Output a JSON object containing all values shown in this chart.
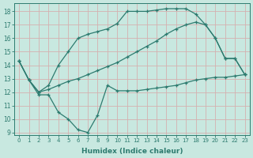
{
  "line1_x": [
    0,
    1,
    2,
    3,
    4,
    5,
    6,
    7,
    8,
    9,
    10,
    11,
    12,
    13,
    14,
    15,
    16,
    17,
    18,
    19,
    20,
    21,
    22,
    23
  ],
  "line1_y": [
    14.3,
    12.9,
    11.8,
    11.8,
    10.5,
    10.0,
    9.2,
    9.0,
    10.3,
    12.5,
    12.1,
    12.1,
    12.1,
    12.2,
    12.3,
    12.4,
    12.5,
    12.7,
    12.9,
    13.0,
    13.1,
    13.1,
    13.2,
    13.3
  ],
  "line2_x": [
    0,
    1,
    2,
    3,
    4,
    5,
    6,
    7,
    8,
    9,
    10,
    11,
    12,
    13,
    14,
    15,
    16,
    17,
    18,
    19,
    20,
    21,
    22,
    23
  ],
  "line2_y": [
    14.3,
    12.9,
    12.0,
    12.2,
    12.5,
    12.8,
    13.0,
    13.3,
    13.6,
    13.9,
    14.2,
    14.6,
    15.0,
    15.4,
    15.8,
    16.3,
    16.7,
    17.0,
    17.2,
    17.0,
    16.0,
    14.5,
    14.5,
    13.3
  ],
  "line3_x": [
    0,
    1,
    2,
    3,
    4,
    5,
    6,
    7,
    8,
    9,
    10,
    11,
    12,
    13,
    14,
    15,
    16,
    17,
    18,
    19,
    20,
    21,
    22,
    23
  ],
  "line3_y": [
    14.3,
    12.9,
    12.0,
    12.5,
    14.0,
    15.0,
    16.0,
    16.3,
    16.5,
    16.7,
    17.1,
    18.0,
    18.0,
    18.0,
    18.1,
    18.2,
    18.2,
    18.2,
    17.8,
    17.0,
    16.0,
    14.5,
    14.5,
    13.3
  ],
  "color": "#2d7b6f",
  "bg_color": "#c8e8e0",
  "grid_color": "#d4b0b0",
  "xlabel": "Humidex (Indice chaleur)",
  "xlim": [
    -0.5,
    23.5
  ],
  "ylim": [
    8.8,
    18.6
  ],
  "yticks": [
    9,
    10,
    11,
    12,
    13,
    14,
    15,
    16,
    17,
    18
  ],
  "xticks": [
    0,
    1,
    2,
    3,
    4,
    5,
    6,
    7,
    8,
    9,
    10,
    11,
    12,
    13,
    14,
    15,
    16,
    17,
    18,
    19,
    20,
    21,
    22,
    23
  ]
}
